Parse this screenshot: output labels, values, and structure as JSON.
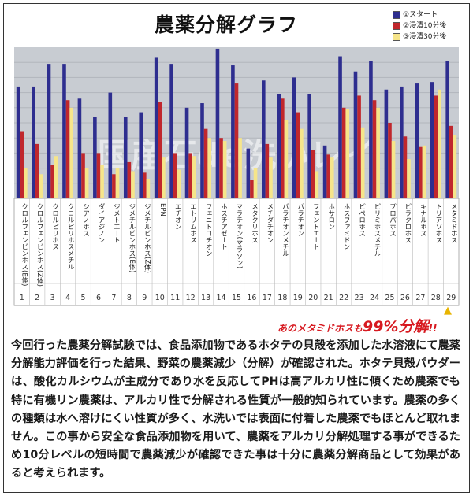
{
  "chart_data": {
    "type": "bar",
    "title": "農薬分解グラフ",
    "legend_position": "top-right",
    "grid": true,
    "ylim": [
      0,
      100
    ],
    "categories": [
      "クロルフェンビンホス(E体)",
      "クロルフェンビンホス(Z体)",
      "クロルピリホス",
      "クロルピリホスメチル",
      "シアノホス",
      "ダイアジノン",
      "ジメトエート",
      "ジメチルビンホス(E体)",
      "ジメチルビンホス(Z体)",
      "EPN",
      "エチオン",
      "エトリムホス",
      "フェニトロチオン",
      "ホスチアゼート",
      "マラチオン(マラソン)",
      "メタクリホス",
      "メチダチオン",
      "パラチオンメチル",
      "パラチオン",
      "フェントエート",
      "ホサロン",
      "ホスファミドン",
      "ピペロホス",
      "ピリミホスメチル",
      "プロパホス",
      "ピラクロホス",
      "キナルホス",
      "トリアゾホス",
      "メタミドホス"
    ],
    "category_numbers": [
      "1",
      "2",
      "3",
      "4",
      "5",
      "6",
      "7",
      "8",
      "9",
      "10",
      "11",
      "12",
      "13",
      "14",
      "15",
      "16",
      "17",
      "18",
      "19",
      "20",
      "21",
      "22",
      "23",
      "24",
      "25",
      "26",
      "27",
      "28",
      "29"
    ],
    "series": [
      {
        "name": "①スタート",
        "color": "#2e2e8f",
        "values": [
          74,
          74,
          89,
          89,
          66,
          54,
          70,
          54,
          57,
          93,
          89,
          60,
          63,
          99,
          88,
          33,
          78,
          69,
          80,
          69,
          35,
          94,
          84,
          91,
          72,
          74,
          76,
          77,
          91
        ]
      },
      {
        "name": "②浸漬10分後",
        "color": "#c0272d",
        "values": [
          44,
          36,
          22,
          65,
          30,
          30,
          16,
          24,
          17,
          64,
          30,
          30,
          46,
          40,
          76,
          12,
          36,
          66,
          57,
          32,
          29,
          60,
          68,
          65,
          50,
          41,
          34,
          68,
          48
        ]
      },
      {
        "name": "③浸漬30分後",
        "color": "#f6e58a",
        "values": [
          20,
          16,
          28,
          60,
          20,
          22,
          20,
          18,
          13,
          27,
          19,
          28,
          40,
          38,
          40,
          20,
          27,
          52,
          46,
          18,
          27,
          59,
          47,
          60,
          38,
          26,
          35,
          72,
          42
        ]
      }
    ]
  },
  "watermark": "国産石de洗いレイ",
  "callout": {
    "prefix": "あのメタミドホスも",
    "big": "99%分解",
    "suffix": "!!"
  },
  "body_text": "今回行った農薬分解試験では、食品添加物であるホタテの貝殻を添加した水溶液にて農薬分解能力評価を行った結果、野菜の農薬減少（分解）が確認された。ホタテ貝殻パウダーは、酸化カルシウムが主成分であり水を反応してPHは高アルカリ性に傾くため農薬でも特に有機リン農薬は、アルカリ性で分解される性質が一般的知られています。農薬の多くの種類は水へ溶けにくい性質が多く、水洗いでは表面に付着した農薬でもほとんど取れません。この事から安全な食品添加物を用いて、農薬をアルカリ分解処理する事ができるため10分レベルの短時間で農薬減少が確認できた事は十分に農薬分解商品として効果があると考えられます。"
}
